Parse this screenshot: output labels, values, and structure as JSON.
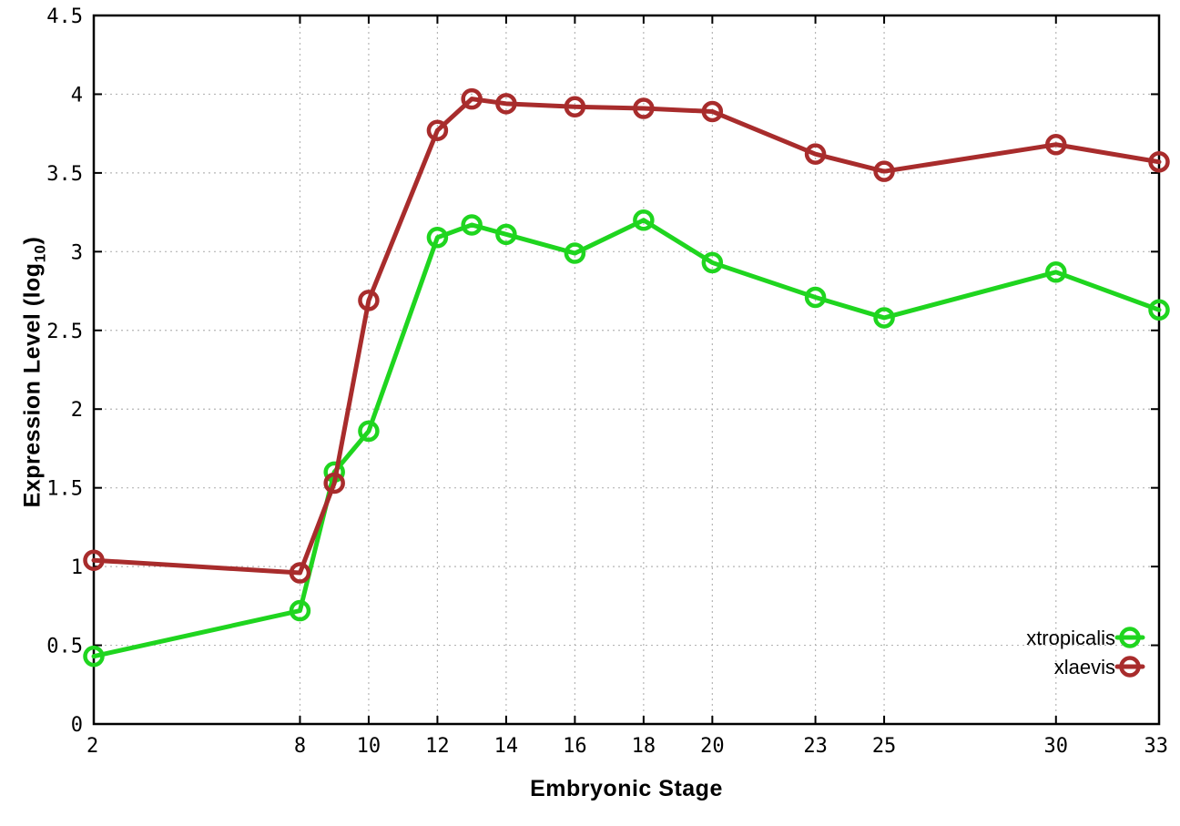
{
  "chart_data": {
    "type": "line",
    "title": "",
    "xlabel": "Embryonic Stage",
    "ylabel": {
      "prefix": "Expression Level (log",
      "sub": "10",
      "suffix": ")"
    },
    "xlim": [
      2,
      33
    ],
    "ylim": [
      0,
      4.5
    ],
    "grid": true,
    "legend_position": "bottom-right",
    "x": [
      2,
      8,
      9,
      10,
      12,
      13,
      14,
      16,
      18,
      20,
      23,
      25,
      30,
      33
    ],
    "xticks": {
      "values": [
        2,
        8,
        10,
        12,
        14,
        16,
        18,
        20,
        23,
        25,
        30,
        33
      ],
      "labels": [
        "2",
        "8",
        "10",
        "12",
        "14",
        "16",
        "18",
        "20",
        "23",
        "25",
        "30",
        "33"
      ]
    },
    "yticks": {
      "values": [
        0,
        0.5,
        1,
        1.5,
        2,
        2.5,
        3,
        3.5,
        4,
        4.5
      ],
      "labels": [
        "0",
        "0.5",
        "1",
        "1.5",
        "2",
        "2.5",
        "3",
        "3.5",
        "4",
        "4.5"
      ]
    },
    "series": [
      {
        "name": "xtropicalis",
        "color": "#1fd51f",
        "values": [
          0.43,
          0.72,
          1.6,
          1.86,
          3.09,
          3.17,
          3.11,
          2.99,
          3.2,
          2.93,
          2.71,
          2.58,
          2.87,
          2.63
        ]
      },
      {
        "name": "xlaevis",
        "color": "#a82c2c",
        "values": [
          1.04,
          0.96,
          1.53,
          2.69,
          3.77,
          3.97,
          3.94,
          3.92,
          3.91,
          3.89,
          3.62,
          3.51,
          3.68,
          3.57
        ]
      }
    ]
  },
  "colors": {
    "background": "#ffffff",
    "axis": "#000000",
    "grid": "#b5b5b5",
    "text": "#000000"
  }
}
